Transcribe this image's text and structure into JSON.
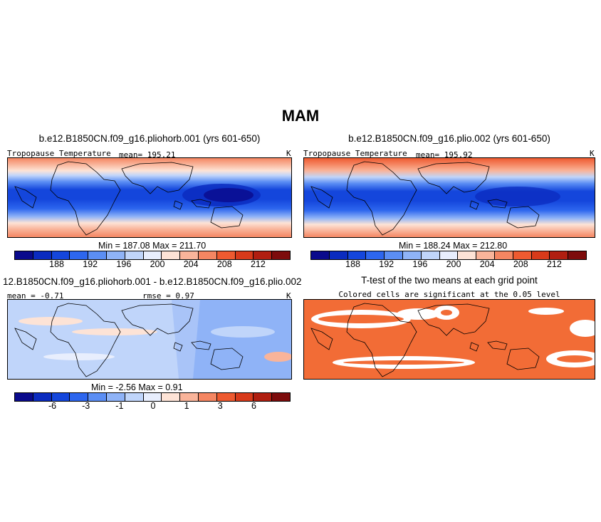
{
  "figure": {
    "season_title": "MAM"
  },
  "panels": {
    "a": {
      "title": "b.e12.B1850CN.f09_g16.pliohorb.001 (yrs 601-650)",
      "variable": "Tropopause Temperature",
      "stat": "mean= 195.21",
      "units": "K",
      "minmax": "Min = 187.08 Max = 211.70"
    },
    "b": {
      "title": "b.e12.B1850CN.f09_g16.plio.002 (yrs 601-650)",
      "variable": "Tropopause Temperature",
      "stat": "mean= 195.92",
      "units": "K",
      "minmax": "Min = 188.24 Max = 212.80"
    },
    "c": {
      "title": "12.B1850CN.f09_g16.pliohorb.001 - b.e12.B1850CN.f09_g16.plio.002",
      "stat_left": "mean = -0.71",
      "stat_right": "rmse = 0.97",
      "units": "K",
      "minmax": "Min = -2.56 Max = 0.91"
    },
    "d": {
      "title": "T-test of the two means at each grid point",
      "subtitle": "Colored cells are significant at the 0.05 level"
    }
  },
  "colorbars": {
    "abs_labels": [
      "188",
      "192",
      "196",
      "200",
      "204",
      "208",
      "212"
    ],
    "diff_labels": [
      "-6",
      "-3",
      "-1",
      "0",
      "1",
      "3",
      "6"
    ],
    "colors": [
      "#0a0a8c",
      "#0b2bbf",
      "#1446dc",
      "#2d66ee",
      "#5b8ef4",
      "#8fb3f7",
      "#c0d5fa",
      "#e8eefd",
      "#fde3d6",
      "#f9b49a",
      "#f58662",
      "#ee5a30",
      "#d83a1a",
      "#b01e10",
      "#7d0c0c"
    ]
  },
  "map_style": {
    "signif_color": "#f26c36"
  }
}
